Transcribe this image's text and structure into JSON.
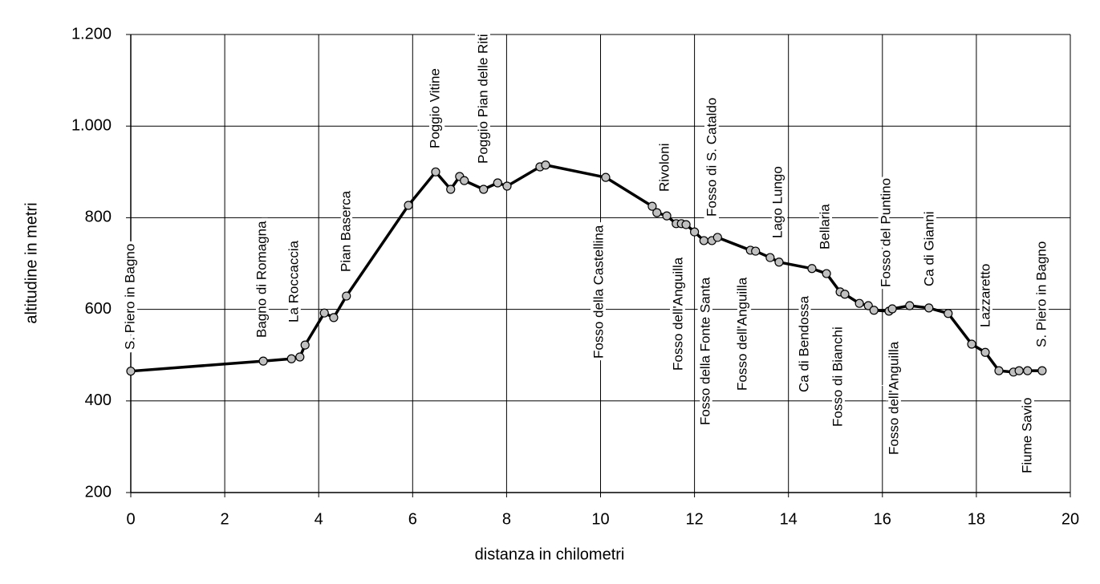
{
  "chart_data": {
    "type": "line",
    "x_label": "distanza in chilometri",
    "y_label": "altitudine  in metri",
    "x": [
      0,
      2.82,
      3.42,
      3.6,
      3.71,
      4.12,
      4.32,
      4.59,
      5.91,
      6.49,
      6.81,
      7.0,
      7.1,
      7.51,
      7.81,
      8.01,
      8.71,
      8.83,
      10.11,
      11.1,
      11.2,
      11.41,
      11.61,
      11.72,
      11.82,
      12.0,
      12.2,
      12.37,
      12.49,
      13.19,
      13.3,
      13.61,
      13.8,
      14.5,
      14.81,
      15.1,
      15.2,
      15.51,
      15.7,
      15.82,
      16.14,
      16.21,
      16.58,
      16.99,
      17.4,
      17.9,
      18.19,
      18.48,
      18.79,
      18.91,
      19.09,
      19.4
    ],
    "series": [
      {
        "color": "#000000",
        "marker_color": "#c0c0c0",
        "values": [
          465,
          487,
          492,
          496,
          522,
          592,
          582,
          629,
          827,
          900,
          862,
          890,
          881,
          862,
          876,
          869,
          911,
          915,
          888,
          825,
          811,
          804,
          787,
          787,
          785,
          769,
          750,
          750,
          757,
          729,
          727,
          713,
          703,
          689,
          678,
          638,
          633,
          613,
          608,
          598,
          596,
          601,
          608,
          603,
          591,
          524,
          506,
          466,
          463,
          466,
          466,
          466
        ]
      }
    ],
    "xlim": [
      0,
      20
    ],
    "xticks": [
      0,
      2,
      4,
      6,
      8,
      10,
      12,
      14,
      16,
      18,
      20
    ],
    "ylim": [
      200,
      1200
    ],
    "yticks": [
      200,
      400,
      600,
      800,
      {
        "value": 1000,
        "label": "1.000"
      },
      {
        "value": 1200,
        "label": "1.200"
      }
    ],
    "grid": true,
    "annotations": [
      "S. Piero in Bagno",
      "Bagno di Romagna",
      "La Roccaccia",
      "Pian Baserca",
      "Poggio Vitine",
      "Poggio Pian delle Riti",
      "Fosso della Castellina",
      "Rivoloni",
      "Fosso dell'Anguilla",
      "Fosso di S. Cataldo",
      "Fosso della Fonte Santa",
      "Fosso dell'Anguilla",
      "Lago Lungo",
      "Ca di Bendossa",
      "Bellaria",
      "Fosso di Bianchi",
      "Fosso del Puntino",
      "Fosso dell'Anguilla",
      "Ca di Gianni",
      "Lazzaretto",
      "Fiume Savio",
      "S. Piero in Bagno"
    ]
  }
}
